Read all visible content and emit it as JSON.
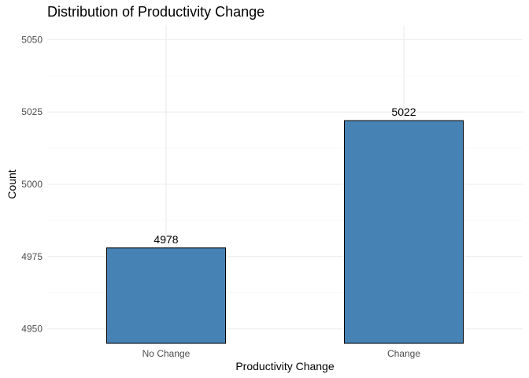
{
  "chart_data": {
    "type": "bar",
    "title": "Distribution of Productivity Change",
    "xlabel": "Productivity Change",
    "ylabel": "Count",
    "categories": [
      "No Change",
      "Change"
    ],
    "values": [
      4978,
      5022
    ],
    "data_labels": [
      "4978",
      "5022"
    ],
    "ylim": [
      4945,
      5055
    ],
    "yticks": [
      4950,
      4975,
      5000,
      5025,
      5050
    ],
    "grid": true,
    "legend": "none",
    "colors": {
      "bar_fill": "#4682B4",
      "bar_stroke": "#000000",
      "grid_major": "#EBEBEB",
      "grid_minor": "#F5F5F5"
    }
  }
}
